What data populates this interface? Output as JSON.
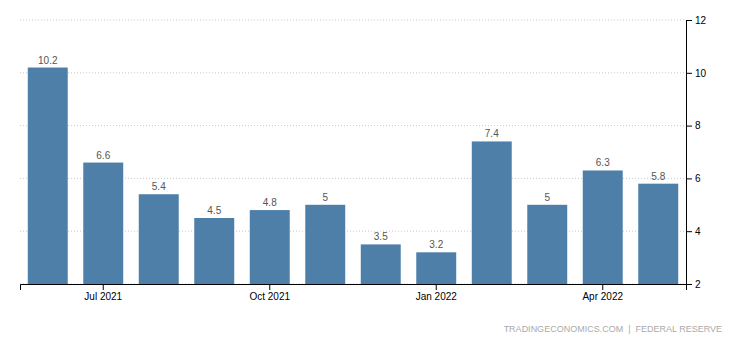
{
  "chart_data": {
    "type": "bar",
    "categories": [
      null,
      "Jul 2021",
      null,
      null,
      "Oct 2021",
      null,
      null,
      "Jan 2022",
      null,
      null,
      "Apr 2022",
      null
    ],
    "values": [
      10.2,
      6.6,
      5.4,
      4.5,
      4.8,
      5.0,
      3.5,
      3.2,
      7.4,
      5.0,
      6.3,
      5.8
    ],
    "color": "#4d7fa8",
    "ylim": [
      2,
      12
    ],
    "yticks": [
      2,
      4,
      6,
      8,
      10,
      12
    ],
    "grid": true,
    "data_labels": true,
    "annotations": [
      "TRADINGECONOMICS.COM  |  FEDERAL RESERVE"
    ]
  }
}
